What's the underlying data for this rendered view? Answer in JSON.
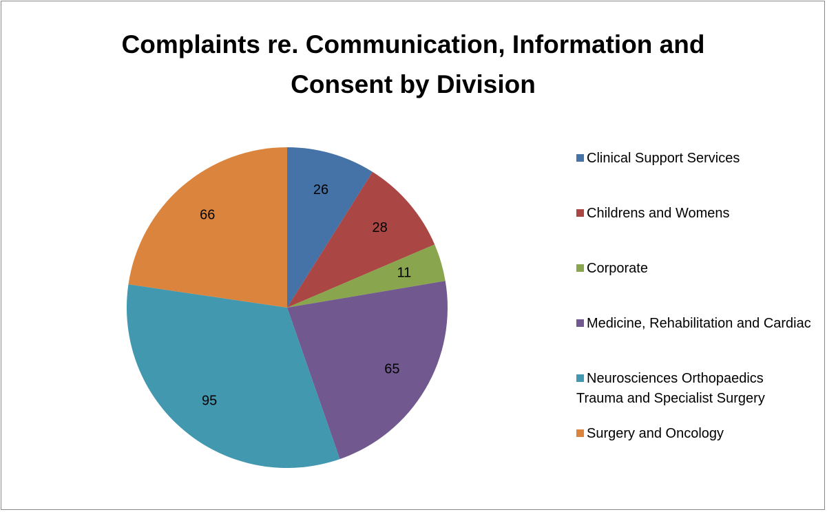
{
  "chart_data": {
    "type": "pie",
    "title": "Complaints re. Communication, Information and Consent by Division",
    "categories": [
      "Clinical Support Services",
      "Childrens and Womens",
      "Corporate",
      "Medicine, Rehabilitation and Cardiac",
      "Neurosciences Orthopaedics Trauma and Specialist Surgery",
      "Surgery and Oncology"
    ],
    "values": [
      26,
      28,
      11,
      65,
      95,
      66
    ],
    "colors": [
      "#4572a7",
      "#aa4643",
      "#89a54e",
      "#71588f",
      "#4198af",
      "#db843d"
    ],
    "legend": "right"
  }
}
